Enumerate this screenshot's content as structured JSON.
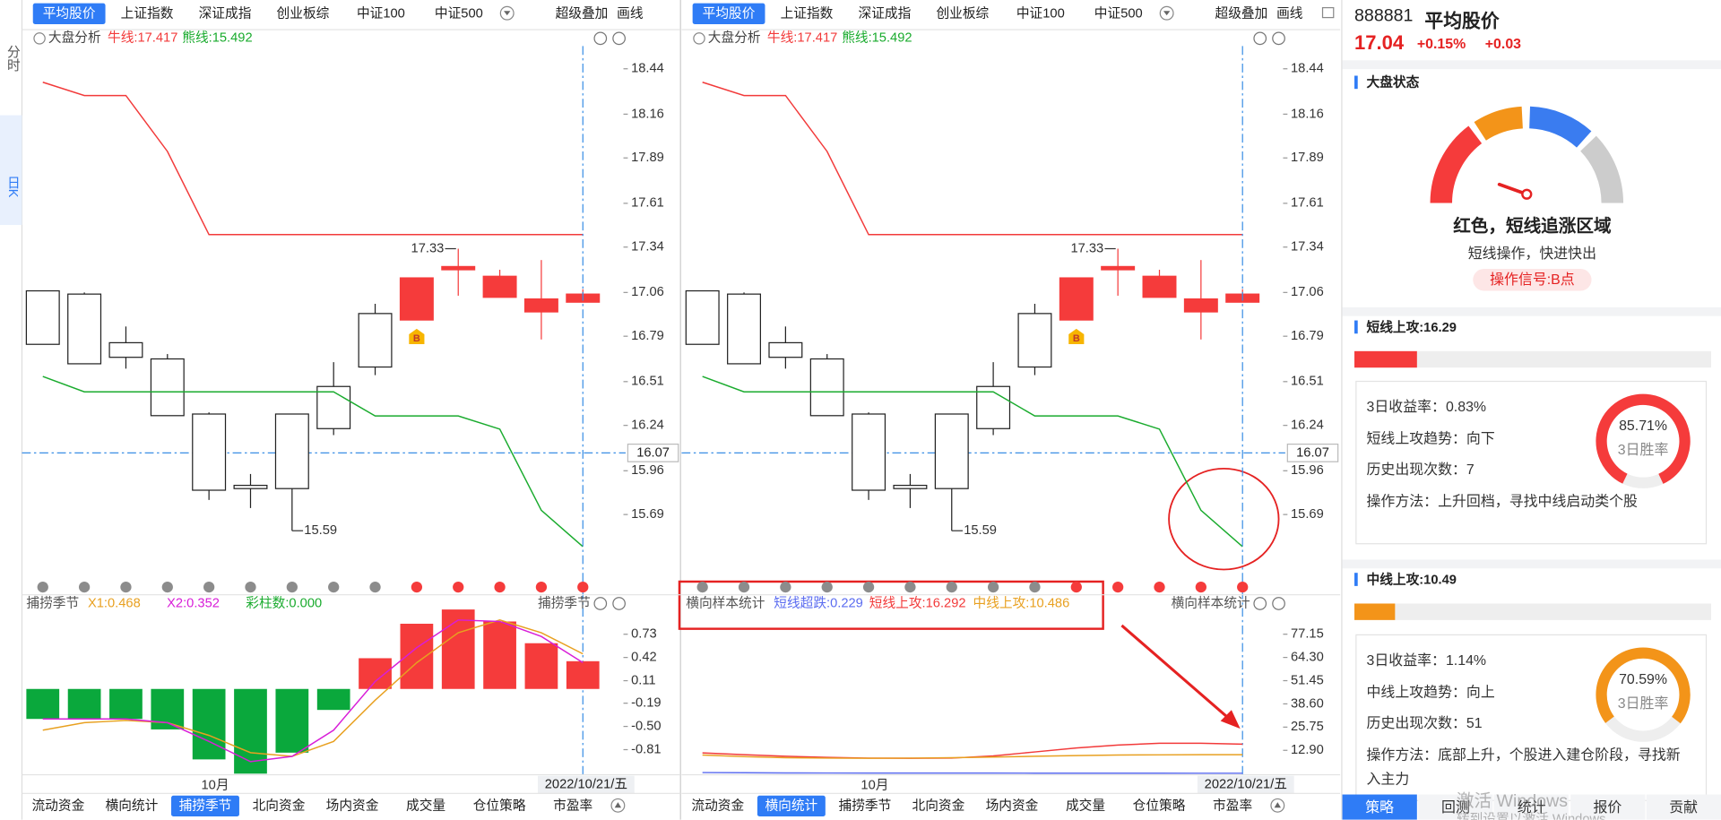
{
  "top_tabs": {
    "items": [
      "平均股价",
      "上证指数",
      "深证成指",
      "创业板综",
      "中证100",
      "中证500"
    ],
    "selected": 0,
    "tools": [
      "超级叠加",
      "画线"
    ]
  },
  "period_tabs": {
    "items": [
      "分时",
      "日K"
    ],
    "selected": 1
  },
  "kline": {
    "header": "大盘分析",
    "ylim": [
      15.31,
      18.58
    ],
    "yticks": [
      15.69,
      15.96,
      16.24,
      16.51,
      16.79,
      17.06,
      17.34,
      17.61,
      17.89,
      18.16,
      18.44
    ],
    "price_line": 16.07,
    "candles": {
      "open": [
        16.74,
        16.62,
        16.66,
        16.3,
        15.84,
        15.85,
        15.85,
        16.22,
        16.6,
        17.15,
        17.22,
        17.16,
        17.02,
        17.05
      ],
      "high": [
        17.07,
        17.06,
        16.85,
        16.68,
        16.32,
        15.94,
        16.31,
        16.63,
        16.99,
        17.15,
        17.33,
        17.2,
        17.26,
        17.08
      ],
      "low": [
        16.74,
        16.62,
        16.59,
        16.3,
        15.78,
        15.73,
        15.59,
        16.18,
        16.55,
        16.89,
        17.04,
        17.03,
        16.77,
        17.0
      ],
      "close": [
        17.07,
        17.05,
        16.75,
        16.65,
        16.31,
        15.87,
        16.31,
        16.48,
        16.93,
        16.89,
        17.2,
        17.03,
        16.94,
        17.0
      ],
      "up_color": "#ffffff",
      "down_color": "#f53b3b"
    },
    "high_label_index": 10,
    "low_label_index": 6,
    "buy_marker": {
      "index": 9,
      "label": "B"
    },
    "series": [
      {
        "name": "牛线",
        "legend": "牛线:17.417",
        "color": "#f23a3a",
        "values": [
          18.357,
          18.275,
          18.275,
          17.93,
          17.417,
          17.417,
          17.417,
          17.417,
          17.417,
          17.417,
          17.417,
          17.417,
          17.417,
          17.417
        ]
      },
      {
        "name": "熊线",
        "legend": "熊线:15.492",
        "color": "#1aab2e",
        "values": [
          16.542,
          16.447,
          16.447,
          16.447,
          16.447,
          16.447,
          16.447,
          16.447,
          16.298,
          16.298,
          16.298,
          16.217,
          15.716,
          15.492
        ]
      }
    ],
    "signal_colors": [
      "#8c8c8c",
      "#8c8c8c",
      "#8c8c8c",
      "#8c8c8c",
      "#8c8c8c",
      "#8c8c8c",
      "#8c8c8c",
      "#8c8c8c",
      "#8c8c8c",
      "#f53b3b",
      "#f53b3b",
      "#f53b3b",
      "#f53b3b",
      "#f53b3b"
    ]
  },
  "x_axis": {
    "month_label": "10月",
    "date_label": "2022/10/21/五"
  },
  "bottom_tabs": [
    "流动资金",
    "横向统计",
    "捕捞季节",
    "北向资金",
    "场内资金",
    "成交量",
    "仓位策略",
    "市盈率"
  ],
  "panels": [
    {
      "selected_bottom_tab": 2,
      "indicator": {
        "type": "bar-line",
        "title": "捕捞季节",
        "legend": [
          {
            "text": "X1:0.468",
            "color": "#e8a020"
          },
          {
            "text": "X2:0.352",
            "color": "#d81ed8"
          },
          {
            "text": "彩柱数:0.000",
            "color": "#1aab2e"
          }
        ],
        "ylim": [
          -1.13,
          1.11
        ],
        "yticks": [
          -0.81,
          {
            "value": -0.5,
            "label": "-0.50"
          },
          -0.19,
          0.11,
          0.42,
          0.73
        ],
        "bars": {
          "values": [
            -0.4,
            -0.4,
            -0.4,
            -0.54,
            -0.94,
            -1.13,
            -0.85,
            -0.28,
            0.41,
            0.87,
            1.06,
            0.9,
            0.61,
            0.37
          ],
          "up_color": "#f53b3b",
          "down_color": "#0aa83c"
        },
        "series": [
          {
            "name": "X1",
            "color": "#e8a020",
            "values": [
              -0.55,
              -0.45,
              -0.42,
              -0.45,
              -0.62,
              -0.85,
              -0.9,
              -0.7,
              -0.15,
              0.35,
              0.75,
              0.92,
              0.75,
              0.468
            ]
          },
          {
            "name": "X2",
            "color": "#d81ed8",
            "values": [
              -0.4,
              -0.4,
              -0.4,
              -0.45,
              -0.7,
              -0.97,
              -0.9,
              -0.55,
              0.1,
              0.55,
              0.92,
              0.9,
              0.7,
              0.352
            ]
          }
        ]
      }
    },
    {
      "selected_bottom_tab": 1,
      "indicator": {
        "type": "line",
        "title": "横向样本统计",
        "legend": [
          {
            "text": "短线超跌:0.229",
            "color": "#5b6cf0"
          },
          {
            "text": "短线上攻:16.292",
            "color": "#f23a3a"
          },
          {
            "text": "中线上攻:10.486",
            "color": "#e8a020"
          }
        ],
        "ylim": [
          0,
          92.9
        ],
        "yticks": [
          {
            "value": 12.9,
            "label": "12.90"
          },
          25.75,
          {
            "value": 38.6,
            "label": "38.60"
          },
          51.45,
          {
            "value": 64.3,
            "label": "64.30"
          },
          77.15
        ],
        "series": [
          {
            "name": "短线超跌",
            "color": "#5b6cf0",
            "values": [
              0.6,
              0.5,
              0.4,
              0.35,
              0.3,
              0.3,
              0.3,
              0.3,
              0.28,
              0.27,
              0.25,
              0.24,
              0.23,
              0.229
            ]
          },
          {
            "name": "短线上攻",
            "color": "#f23a3a",
            "values": [
              11.5,
              10.5,
              9.6,
              9.0,
              8.6,
              8.5,
              8.6,
              9.8,
              12.0,
              14.2,
              15.8,
              16.8,
              16.8,
              16.292
            ]
          },
          {
            "name": "中线上攻",
            "color": "#e8a020",
            "values": [
              10.3,
              9.4,
              8.8,
              8.6,
              8.5,
              8.6,
              8.8,
              9.2,
              9.6,
              10.0,
              10.3,
              10.4,
              10.5,
              10.486
            ]
          }
        ]
      }
    }
  ],
  "sidebar": {
    "code": "888881",
    "name": "平均股价",
    "price": 17.04,
    "change_pct": "+0.15%",
    "change": "+0.03",
    "market": {
      "title": "大盘状态",
      "status": "红色，短线追涨区域",
      "advice": "短线操作，快进快出",
      "signal": "操作信号:B点"
    },
    "strategies": [
      {
        "title": "短线上攻:16.29",
        "strength": 16.29,
        "color": "#f53b3b",
        "rows": [
          "3日收益率：0.83%",
          "短线上攻趋势：向下",
          "历史出现次数：7",
          "操作方法：上升回档，寻找中线启动类个股"
        ],
        "win_rate": 85.71,
        "win_rate_label": "85.71%",
        "win_label": "3日胜率"
      },
      {
        "title": "中线上攻:10.49",
        "strength": 10.49,
        "color": "#f39419",
        "rows": [
          "3日收益率：1.14%",
          "中线上攻趋势：向上",
          "历史出现次数：51",
          "操作方法：底部上升，个股进入建仓阶段，寻找新入主力"
        ],
        "win_rate": 70.59,
        "win_rate_label": "70.59%",
        "win_label": "3日胜率"
      }
    ],
    "tabs": [
      "策略",
      "回测",
      "统计",
      "报价",
      "贡献"
    ],
    "selected_tab": 0,
    "watermark": [
      "激活 Windows",
      "转到设置以激活 Windows"
    ]
  }
}
